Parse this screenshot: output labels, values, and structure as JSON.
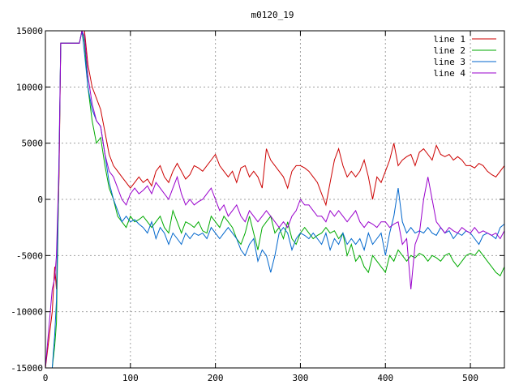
{
  "chart_data": {
    "type": "line",
    "title": "m0120_19",
    "xlabel": "",
    "ylabel": "",
    "xlim": [
      0,
      540
    ],
    "ylim": [
      -15000,
      15000
    ],
    "grid": true,
    "legend_position": "top-right",
    "x_ticks": [
      0,
      100,
      200,
      300,
      400,
      500
    ],
    "y_ticks": [
      -15000,
      -10000,
      -5000,
      0,
      5000,
      10000,
      15000
    ],
    "x_tick_labels": [
      "0",
      "100",
      "200",
      "300",
      "400",
      "500"
    ],
    "y_tick_labels": [
      "-15000",
      "-10000",
      "-5000",
      "0",
      "5000",
      "10000",
      "15000"
    ],
    "series": [
      {
        "name": "line 1",
        "color": "#cc0000",
        "x": [
          0,
          8,
          11,
          13,
          16,
          18,
          20,
          24,
          30,
          35,
          40,
          43,
          46,
          50,
          55,
          60,
          65,
          70,
          75,
          80,
          85,
          90,
          95,
          100,
          105,
          110,
          115,
          120,
          125,
          130,
          135,
          140,
          145,
          150,
          155,
          160,
          165,
          170,
          175,
          180,
          185,
          190,
          195,
          200,
          205,
          210,
          215,
          220,
          225,
          230,
          235,
          240,
          245,
          250,
          255,
          260,
          265,
          270,
          275,
          280,
          285,
          290,
          295,
          300,
          305,
          310,
          315,
          320,
          325,
          330,
          335,
          340,
          345,
          350,
          355,
          360,
          365,
          370,
          375,
          380,
          385,
          390,
          395,
          400,
          405,
          410,
          415,
          420,
          425,
          430,
          435,
          440,
          445,
          450,
          455,
          460,
          465,
          470,
          475,
          480,
          485,
          490,
          495,
          500,
          505,
          510,
          515,
          520,
          525,
          530,
          535,
          540
        ],
        "y": [
          -15000,
          -10000,
          -6000,
          -8000,
          2000,
          13900,
          13900,
          13900,
          13900,
          13900,
          13900,
          15500,
          15000,
          12000,
          10000,
          9000,
          8000,
          6000,
          4000,
          3000,
          2500,
          2000,
          1500,
          1000,
          1500,
          2000,
          1500,
          1800,
          1200,
          2500,
          3000,
          2000,
          1500,
          2500,
          3200,
          2500,
          1800,
          2200,
          3000,
          2800,
          2500,
          3000,
          3500,
          4000,
          3000,
          2500,
          2000,
          2500,
          1500,
          2800,
          3000,
          2000,
          2500,
          2000,
          1000,
          4500,
          3500,
          3000,
          2500,
          2000,
          1000,
          2500,
          3000,
          3000,
          2800,
          2500,
          2000,
          1500,
          500,
          -500,
          1500,
          3500,
          4500,
          3000,
          2000,
          2500,
          2000,
          2500,
          3500,
          2000,
          0,
          2000,
          1500,
          2500,
          3500,
          5000,
          3000,
          3500,
          3800,
          4000,
          3000,
          4200,
          4500,
          4000,
          3500,
          4800,
          4000,
          3800,
          4000,
          3500,
          3800,
          3500,
          3000,
          3000,
          2800,
          3200,
          3000,
          2500,
          2200,
          2000,
          2500,
          3000
        ]
      },
      {
        "name": "line 2",
        "color": "#00aa00",
        "x": [
          0,
          8,
          11,
          13,
          16,
          18,
          20,
          24,
          30,
          35,
          40,
          43,
          46,
          50,
          55,
          60,
          65,
          70,
          75,
          80,
          85,
          90,
          95,
          100,
          105,
          110,
          115,
          120,
          125,
          130,
          135,
          140,
          145,
          150,
          155,
          160,
          165,
          170,
          175,
          180,
          185,
          190,
          195,
          200,
          205,
          210,
          215,
          220,
          225,
          230,
          235,
          240,
          245,
          250,
          255,
          260,
          265,
          270,
          275,
          280,
          285,
          290,
          295,
          300,
          305,
          310,
          315,
          320,
          325,
          330,
          335,
          340,
          345,
          350,
          355,
          360,
          365,
          370,
          375,
          380,
          385,
          390,
          395,
          400,
          405,
          410,
          415,
          420,
          425,
          430,
          435,
          440,
          445,
          450,
          455,
          460,
          465,
          470,
          475,
          480,
          485,
          490,
          495,
          500,
          505,
          510,
          515,
          520,
          525,
          530,
          535,
          540
        ],
        "y": [
          -15000,
          -15000,
          -13000,
          -11000,
          3000,
          13900,
          13900,
          13900,
          13900,
          13900,
          13900,
          15500,
          14000,
          10000,
          7000,
          5000,
          5500,
          3000,
          1000,
          0,
          -1500,
          -2000,
          -2500,
          -1500,
          -2000,
          -1800,
          -1500,
          -2000,
          -2500,
          -2000,
          -1500,
          -2500,
          -3000,
          -1000,
          -2000,
          -3000,
          -2000,
          -2200,
          -2500,
          -2000,
          -2800,
          -3000,
          -1500,
          -2000,
          -2500,
          -1500,
          -2000,
          -2500,
          -3500,
          -4000,
          -3000,
          -1500,
          -3000,
          -4500,
          -2500,
          -2000,
          -1500,
          -3000,
          -2500,
          -3500,
          -2000,
          -3500,
          -4000,
          -3000,
          -2500,
          -3000,
          -3500,
          -3200,
          -3000,
          -2500,
          -3000,
          -2800,
          -3500,
          -3000,
          -5000,
          -4000,
          -5500,
          -5000,
          -6000,
          -6500,
          -5000,
          -5500,
          -6000,
          -6500,
          -5000,
          -5500,
          -4500,
          -5000,
          -5500,
          -5000,
          -5200,
          -4800,
          -5000,
          -5500,
          -5000,
          -5200,
          -5500,
          -5000,
          -4800,
          -5500,
          -6000,
          -5500,
          -5000,
          -4800,
          -5000,
          -4500,
          -5000,
          -5500,
          -6000,
          -6500,
          -6800,
          -6000
        ]
      },
      {
        "name": "line 3",
        "color": "#0066cc",
        "x": [
          0,
          8,
          11,
          13,
          16,
          18,
          20,
          24,
          30,
          35,
          40,
          43,
          46,
          50,
          55,
          60,
          65,
          70,
          75,
          80,
          85,
          90,
          95,
          100,
          105,
          110,
          115,
          120,
          125,
          130,
          135,
          140,
          145,
          150,
          155,
          160,
          165,
          170,
          175,
          180,
          185,
          190,
          195,
          200,
          205,
          210,
          215,
          220,
          225,
          230,
          235,
          240,
          245,
          250,
          255,
          260,
          265,
          270,
          275,
          280,
          285,
          290,
          295,
          300,
          305,
          310,
          315,
          320,
          325,
          330,
          335,
          340,
          345,
          350,
          355,
          360,
          365,
          370,
          375,
          380,
          385,
          390,
          395,
          400,
          405,
          410,
          415,
          420,
          425,
          430,
          435,
          440,
          445,
          450,
          455,
          460,
          465,
          470,
          475,
          480,
          485,
          490,
          495,
          500,
          505,
          510,
          515,
          520,
          525,
          530,
          535,
          540
        ],
        "y": [
          -15000,
          -15000,
          -12000,
          -9000,
          4000,
          13900,
          13900,
          13900,
          13900,
          13900,
          13900,
          15500,
          13000,
          10000,
          8000,
          7000,
          6500,
          4000,
          1500,
          0,
          -1000,
          -2000,
          -1500,
          -2000,
          -1800,
          -2200,
          -2500,
          -3000,
          -2000,
          -3500,
          -2500,
          -3000,
          -4000,
          -3000,
          -3500,
          -4000,
          -3000,
          -3500,
          -3000,
          -3200,
          -3000,
          -3500,
          -2500,
          -3000,
          -3500,
          -3000,
          -2500,
          -3000,
          -3500,
          -4500,
          -5000,
          -4000,
          -3500,
          -5500,
          -4500,
          -5000,
          -6500,
          -5000,
          -3000,
          -2500,
          -3000,
          -4500,
          -3500,
          -3000,
          -3200,
          -3500,
          -3000,
          -3500,
          -4000,
          -3000,
          -4500,
          -3500,
          -4000,
          -3000,
          -4000,
          -3500,
          -4000,
          -3500,
          -4500,
          -3000,
          -4000,
          -3500,
          -3000,
          -5000,
          -3000,
          -1500,
          1000,
          -2000,
          -3000,
          -2500,
          -3000,
          -2800,
          -3000,
          -2500,
          -3000,
          -3200,
          -2500,
          -3000,
          -2800,
          -3500,
          -3000,
          -3200,
          -2800,
          -3000,
          -3500,
          -4000,
          -3200,
          -3000,
          -3200,
          -3500,
          -2500,
          -2200
        ]
      },
      {
        "name": "line 4",
        "color": "#9900cc",
        "x": [
          0,
          8,
          11,
          13,
          16,
          18,
          20,
          24,
          30,
          35,
          40,
          43,
          46,
          50,
          55,
          60,
          65,
          70,
          75,
          80,
          85,
          90,
          95,
          100,
          105,
          110,
          115,
          120,
          125,
          130,
          135,
          140,
          145,
          150,
          155,
          160,
          165,
          170,
          175,
          180,
          185,
          190,
          195,
          200,
          205,
          210,
          215,
          220,
          225,
          230,
          235,
          240,
          245,
          250,
          255,
          260,
          265,
          270,
          275,
          280,
          285,
          290,
          295,
          300,
          305,
          310,
          315,
          320,
          325,
          330,
          335,
          340,
          345,
          350,
          355,
          360,
          365,
          370,
          375,
          380,
          385,
          390,
          395,
          400,
          405,
          410,
          415,
          420,
          425,
          430,
          435,
          440,
          445,
          450,
          455,
          460,
          465,
          470,
          475,
          480,
          485,
          490,
          495,
          500,
          505,
          510,
          515,
          520,
          525,
          530,
          535,
          540
        ],
        "y": [
          -15000,
          -8000,
          -7000,
          -5000,
          3000,
          13900,
          13900,
          13900,
          13900,
          13900,
          13900,
          15500,
          14500,
          11000,
          8500,
          7000,
          6500,
          4000,
          2500,
          2000,
          1000,
          0,
          -500,
          500,
          1000,
          500,
          800,
          1200,
          500,
          1500,
          1000,
          500,
          0,
          1000,
          2000,
          500,
          -500,
          0,
          -500,
          -200,
          0,
          500,
          1000,
          0,
          -1000,
          -500,
          -1500,
          -1000,
          -500,
          -1500,
          -2000,
          -1000,
          -1500,
          -2000,
          -1500,
          -1000,
          -1500,
          -2000,
          -2500,
          -2000,
          -2500,
          -1500,
          -1000,
          0,
          -500,
          -500,
          -1000,
          -1500,
          -1500,
          -2000,
          -1000,
          -1500,
          -1000,
          -1500,
          -2000,
          -1500,
          -1000,
          -2000,
          -2500,
          -2000,
          -2200,
          -2500,
          -2000,
          -2000,
          -2500,
          -2200,
          -2000,
          -4000,
          -3500,
          -8000,
          -4000,
          -3000,
          0,
          2000,
          0,
          -2000,
          -2500,
          -3000,
          -2500,
          -2800,
          -3000,
          -2500,
          -2800,
          -3000,
          -2500,
          -3000,
          -2800,
          -3000,
          -3200,
          -3000,
          -3500,
          -2800
        ]
      }
    ]
  }
}
